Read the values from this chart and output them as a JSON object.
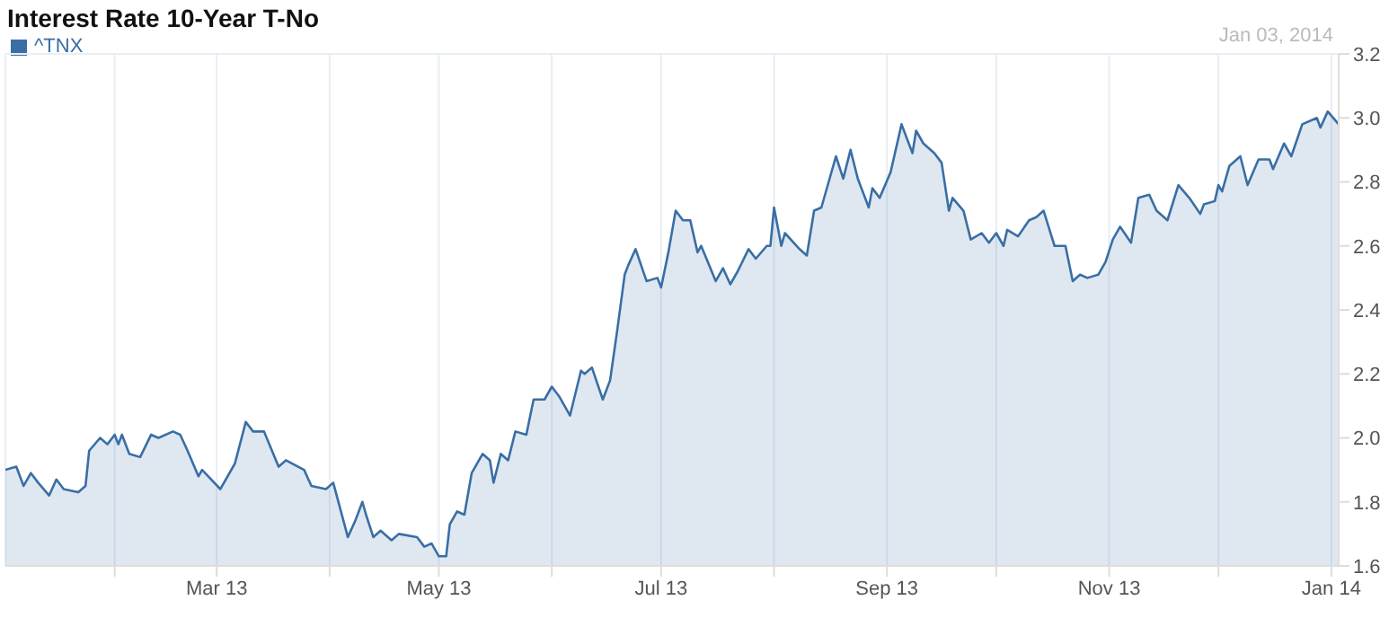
{
  "chart_data": {
    "type": "area",
    "title": "Interest Rate 10-Year T-No",
    "annotations": [
      "Jan 03, 2014"
    ],
    "x": [
      "2013-01-02",
      "2013-01-05",
      "2013-01-07",
      "2013-01-09",
      "2013-01-11",
      "2013-01-14",
      "2013-01-16",
      "2013-01-18",
      "2013-01-22",
      "2013-01-24",
      "2013-01-25",
      "2013-01-28",
      "2013-01-30",
      "2013-02-01",
      "2013-02-02",
      "2013-02-03",
      "2013-02-05",
      "2013-02-08",
      "2013-02-11",
      "2013-02-13",
      "2013-02-17",
      "2013-02-19",
      "2013-02-21",
      "2013-02-24",
      "2013-02-25",
      "2013-03-02",
      "2013-03-06",
      "2013-03-09",
      "2013-03-11",
      "2013-03-14",
      "2013-03-18",
      "2013-03-20",
      "2013-03-25",
      "2013-03-27",
      "2013-03-31",
      "2013-04-02",
      "2013-04-06",
      "2013-04-08",
      "2013-04-10",
      "2013-04-11",
      "2013-04-13",
      "2013-04-15",
      "2013-04-18",
      "2013-04-20",
      "2013-04-25",
      "2013-04-27",
      "2013-04-29",
      "2013-05-01",
      "2013-05-03",
      "2013-05-04",
      "2013-05-06",
      "2013-05-08",
      "2013-05-10",
      "2013-05-13",
      "2013-05-15",
      "2013-05-16",
      "2013-05-18",
      "2013-05-20",
      "2013-05-22",
      "2013-05-25",
      "2013-05-27",
      "2013-05-30",
      "2013-06-01",
      "2013-06-03",
      "2013-06-06",
      "2013-06-09",
      "2013-06-10",
      "2013-06-12",
      "2013-06-15",
      "2013-06-17",
      "2013-06-19",
      "2013-06-21",
      "2013-06-22",
      "2013-06-24",
      "2013-06-27",
      "2013-06-30",
      "2013-07-01",
      "2013-07-03",
      "2013-07-05",
      "2013-07-07",
      "2013-07-09",
      "2013-07-11",
      "2013-07-12",
      "2013-07-16",
      "2013-07-18",
      "2013-07-20",
      "2013-07-22",
      "2013-07-25",
      "2013-07-27",
      "2013-07-30",
      "2013-07-31",
      "2013-08-01",
      "2013-08-03",
      "2013-08-04",
      "2013-08-08",
      "2013-08-10",
      "2013-08-12",
      "2013-08-14",
      "2013-08-18",
      "2013-08-20",
      "2013-08-22",
      "2013-08-24",
      "2013-08-27",
      "2013-08-28",
      "2013-08-30",
      "2013-09-02",
      "2013-09-05",
      "2013-09-08",
      "2013-09-09",
      "2013-09-11",
      "2013-09-14",
      "2013-09-16",
      "2013-09-18",
      "2013-09-19",
      "2013-09-22",
      "2013-09-24",
      "2013-09-27",
      "2013-09-29",
      "2013-10-01",
      "2013-10-03",
      "2013-10-04",
      "2013-10-07",
      "2013-10-10",
      "2013-10-12",
      "2013-10-14",
      "2013-10-17",
      "2013-10-20",
      "2013-10-22",
      "2013-10-24",
      "2013-10-26",
      "2013-10-29",
      "2013-10-31",
      "2013-11-02",
      "2013-11-04",
      "2013-11-07",
      "2013-11-09",
      "2013-11-12",
      "2013-11-14",
      "2013-11-17",
      "2013-11-20",
      "2013-11-23",
      "2013-11-26",
      "2013-11-27",
      "2013-11-30",
      "2013-12-01",
      "2013-12-02",
      "2013-12-04",
      "2013-12-07",
      "2013-12-09",
      "2013-12-12",
      "2013-12-15",
      "2013-12-16",
      "2013-12-19",
      "2013-12-21",
      "2013-12-24",
      "2013-12-28",
      "2013-12-29",
      "2013-12-31",
      "2014-01-03"
    ],
    "series": [
      {
        "name": "^TNX",
        "color": "#3a6ea5",
        "values": [
          1.9,
          1.91,
          1.85,
          1.89,
          1.86,
          1.82,
          1.87,
          1.84,
          1.83,
          1.85,
          1.96,
          2.0,
          1.98,
          2.01,
          1.98,
          2.01,
          1.95,
          1.94,
          2.01,
          2.0,
          2.02,
          2.01,
          1.96,
          1.88,
          1.9,
          1.84,
          1.92,
          2.05,
          2.02,
          2.02,
          1.91,
          1.93,
          1.9,
          1.85,
          1.84,
          1.86,
          1.69,
          1.74,
          1.8,
          1.76,
          1.69,
          1.71,
          1.68,
          1.7,
          1.69,
          1.66,
          1.67,
          1.63,
          1.63,
          1.73,
          1.77,
          1.76,
          1.89,
          1.95,
          1.93,
          1.86,
          1.95,
          1.93,
          2.02,
          2.01,
          2.12,
          2.12,
          2.16,
          2.13,
          2.07,
          2.21,
          2.2,
          2.22,
          2.12,
          2.18,
          2.34,
          2.51,
          2.54,
          2.59,
          2.49,
          2.5,
          2.47,
          2.58,
          2.71,
          2.68,
          2.68,
          2.58,
          2.6,
          2.49,
          2.53,
          2.48,
          2.52,
          2.59,
          2.56,
          2.6,
          2.6,
          2.72,
          2.6,
          2.64,
          2.59,
          2.57,
          2.71,
          2.72,
          2.88,
          2.81,
          2.9,
          2.81,
          2.72,
          2.78,
          2.75,
          2.83,
          2.98,
          2.89,
          2.96,
          2.92,
          2.89,
          2.86,
          2.71,
          2.75,
          2.71,
          2.62,
          2.64,
          2.61,
          2.64,
          2.6,
          2.65,
          2.63,
          2.68,
          2.69,
          2.71,
          2.6,
          2.6,
          2.49,
          2.51,
          2.5,
          2.51,
          2.55,
          2.62,
          2.66,
          2.61,
          2.75,
          2.76,
          2.71,
          2.68,
          2.79,
          2.75,
          2.7,
          2.73,
          2.74,
          2.79,
          2.77,
          2.85,
          2.88,
          2.79,
          2.87,
          2.87,
          2.84,
          2.92,
          2.88,
          2.98,
          3.0,
          2.97,
          3.02,
          2.98
        ]
      }
    ],
    "xlim": [
      "2013-01-02",
      "2014-01-03"
    ],
    "xticks": [
      {
        "value": "2013-02-01",
        "label": null
      },
      {
        "value": "2013-03-01",
        "label": "Mar 13"
      },
      {
        "value": "2013-04-01",
        "label": null
      },
      {
        "value": "2013-05-01",
        "label": "May 13"
      },
      {
        "value": "2013-06-01",
        "label": null
      },
      {
        "value": "2013-07-01",
        "label": "Jul 13"
      },
      {
        "value": "2013-08-01",
        "label": null
      },
      {
        "value": "2013-09-01",
        "label": "Sep 13"
      },
      {
        "value": "2013-10-01",
        "label": null
      },
      {
        "value": "2013-11-01",
        "label": "Nov 13"
      },
      {
        "value": "2013-12-01",
        "label": null
      },
      {
        "value": "2014-01-01",
        "label": "Jan 14"
      }
    ],
    "ylim": [
      1.6,
      3.2
    ],
    "yticks": [
      1.6,
      1.8,
      {
        "value": 2,
        "label": "2.0"
      },
      2.2,
      2.4,
      2.6,
      2.8,
      {
        "value": 3,
        "label": "3.0"
      },
      3.2
    ],
    "grid": true,
    "legend": "top left",
    "marker": "none",
    "line_style": "solid"
  }
}
